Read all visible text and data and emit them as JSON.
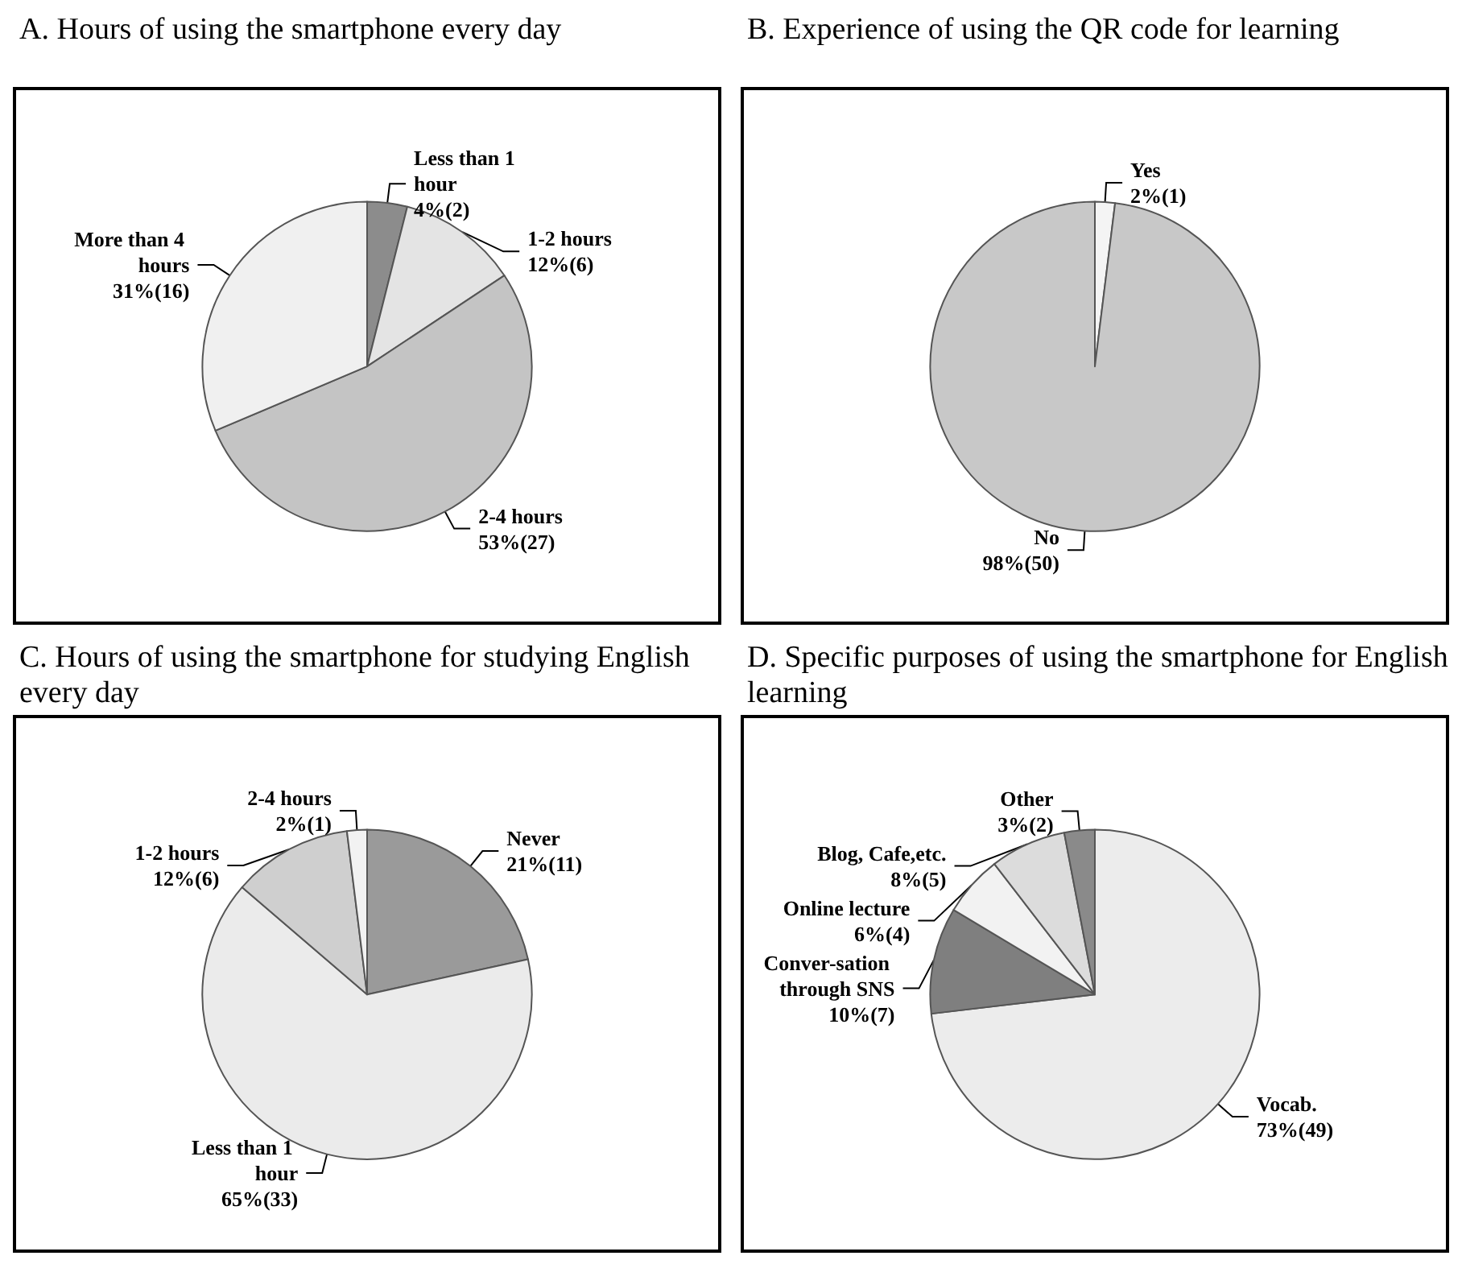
{
  "chart_data": [
    {
      "type": "pie",
      "title": "A. Hours of using the smartphone every day",
      "categories": [
        "Less than 1 hour",
        "1-2 hours",
        "2-4 hours",
        "More than 4 hours"
      ],
      "values": [
        2,
        6,
        27,
        16
      ],
      "value_labels": [
        "4%(2)",
        "12%(6)",
        "53%(27)",
        "31%(16)"
      ],
      "colors": [
        "#8c8c8c",
        "#e4e4e4",
        "#c4c4c4",
        "#f0f0f0"
      ]
    },
    {
      "type": "pie",
      "title": "B. Experience of using the QR code for learning",
      "categories": [
        "Yes",
        "No"
      ],
      "values": [
        1,
        50
      ],
      "value_labels": [
        "2%(1)",
        "98%(50)"
      ],
      "colors": [
        "#f4f4f4",
        "#c8c8c8"
      ]
    },
    {
      "type": "pie",
      "title": "C. Hours of using the smartphone for studying English every day",
      "categories": [
        "Never",
        "Less than 1 hour",
        "1-2 hours",
        "2-4 hours"
      ],
      "values": [
        11,
        33,
        6,
        1
      ],
      "value_labels": [
        "21%(11)",
        "65%(33)",
        "12%(6)",
        "2%(1)"
      ],
      "colors": [
        "#9a9a9a",
        "#ebebeb",
        "#cfcfcf",
        "#f2f2f2"
      ]
    },
    {
      "type": "pie",
      "title": "D. Specific purposes of using the smartphone for English learning",
      "categories": [
        "Vocab.",
        "Conver-sation through SNS",
        "Online lecture",
        "Blog, Cafe,etc.",
        "Other"
      ],
      "values": [
        49,
        7,
        4,
        5,
        2
      ],
      "value_labels": [
        "73%(49)",
        "10%(7)",
        "6%(4)",
        "8%(5)",
        "3%(2)"
      ],
      "colors": [
        "#ececec",
        "#7f7f7f",
        "#f2f2f2",
        "#dcdcdc",
        "#8a8a8a"
      ]
    }
  ]
}
